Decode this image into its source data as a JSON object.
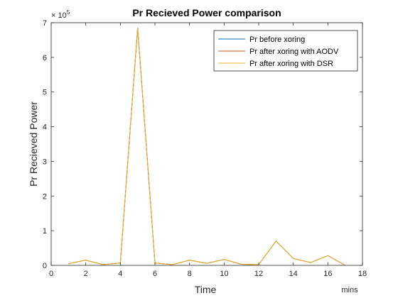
{
  "chart_data": {
    "type": "line",
    "title": "Pr Recieved Power comparison",
    "xlabel": "Time",
    "ylabel": "Pr Recieved Power",
    "x_annotation": "mins",
    "y_exponent_label": "× 10",
    "y_exponent_power": "5",
    "xlim": [
      0,
      18
    ],
    "ylim": [
      0,
      7
    ],
    "x_ticks": [
      0,
      2,
      4,
      6,
      8,
      10,
      12,
      14,
      16,
      18
    ],
    "y_ticks": [
      0,
      1,
      2,
      3,
      4,
      5,
      6,
      7
    ],
    "y_scale_factor": 100000,
    "grid": false,
    "legend_position": "top-right",
    "x": [
      1,
      2,
      3,
      4,
      5,
      6,
      7,
      8,
      9,
      10,
      11,
      12,
      13,
      14,
      15,
      16,
      17
    ],
    "series": [
      {
        "name": "Pr before xoring",
        "color": "#0072BD",
        "values": [
          0.05,
          0.15,
          0.02,
          0.07,
          6.85,
          0.07,
          0.02,
          0.15,
          0.06,
          0.17,
          0.03,
          0.02,
          0.7,
          0.2,
          0.08,
          0.28,
          0.0
        ]
      },
      {
        "name": "Pr after xoring with AODV",
        "color": "#D95319",
        "values": [
          0.05,
          0.15,
          0.02,
          0.07,
          6.85,
          0.07,
          0.02,
          0.15,
          0.06,
          0.17,
          0.03,
          0.02,
          0.7,
          0.2,
          0.08,
          0.28,
          0.0
        ]
      },
      {
        "name": "Pr after xoring with DSR",
        "color": "#EDB120",
        "values": [
          0.05,
          0.15,
          0.02,
          0.07,
          6.85,
          0.07,
          0.02,
          0.15,
          0.06,
          0.17,
          0.03,
          0.02,
          0.7,
          0.2,
          0.08,
          0.28,
          0.0
        ]
      }
    ]
  }
}
